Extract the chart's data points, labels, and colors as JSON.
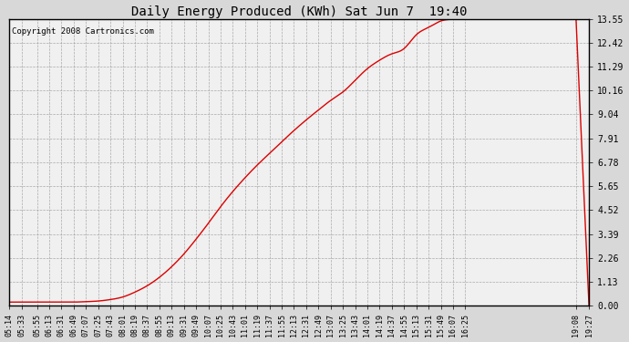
{
  "title": "Daily Energy Produced (KWh) Sat Jun 7  19:40",
  "copyright_text": "Copyright 2008 Cartronics.com",
  "line_color": "#dd0000",
  "background_color": "#d8d8d8",
  "plot_bg_color": "#f0f0f0",
  "grid_color": "#999999",
  "yticks": [
    0.0,
    1.13,
    2.26,
    3.39,
    4.52,
    5.65,
    6.78,
    7.91,
    9.04,
    10.16,
    11.29,
    12.42,
    13.55
  ],
  "xtick_labels": [
    "05:14",
    "05:33",
    "05:55",
    "06:13",
    "06:31",
    "06:49",
    "07:07",
    "07:25",
    "07:43",
    "08:01",
    "08:19",
    "08:37",
    "08:55",
    "09:13",
    "09:31",
    "09:49",
    "10:07",
    "10:25",
    "10:43",
    "11:01",
    "11:19",
    "11:37",
    "11:55",
    "12:13",
    "12:31",
    "12:49",
    "13:07",
    "13:25",
    "13:43",
    "14:01",
    "14:19",
    "14:37",
    "14:55",
    "15:13",
    "15:31",
    "15:49",
    "16:07",
    "16:25",
    "19:08",
    "19:27"
  ],
  "ymax": 13.55,
  "ymin": 0.0,
  "curve_points_t": [
    "05:14",
    "05:33",
    "05:55",
    "06:13",
    "06:31",
    "06:49",
    "07:07",
    "07:25",
    "07:43",
    "08:01",
    "08:19",
    "08:37",
    "08:55",
    "09:13",
    "09:31",
    "09:49",
    "10:07",
    "10:25",
    "10:43",
    "11:01",
    "11:19",
    "11:37",
    "11:55",
    "12:13",
    "12:31",
    "12:49",
    "13:07",
    "13:25",
    "13:43",
    "14:01",
    "14:19",
    "14:37",
    "14:55",
    "15:13",
    "15:31",
    "15:49",
    "16:07",
    "16:25",
    "19:08",
    "19:27"
  ],
  "curve_points_y": [
    0.18,
    0.18,
    0.18,
    0.18,
    0.18,
    0.18,
    0.2,
    0.23,
    0.3,
    0.42,
    0.65,
    0.95,
    1.35,
    1.85,
    2.45,
    3.15,
    3.9,
    4.68,
    5.4,
    6.05,
    6.65,
    7.2,
    7.75,
    8.28,
    8.78,
    9.25,
    9.7,
    10.1,
    10.65,
    11.2,
    11.6,
    11.9,
    12.15,
    12.8,
    13.15,
    13.45,
    13.53,
    13.55,
    13.55,
    0.05
  ]
}
